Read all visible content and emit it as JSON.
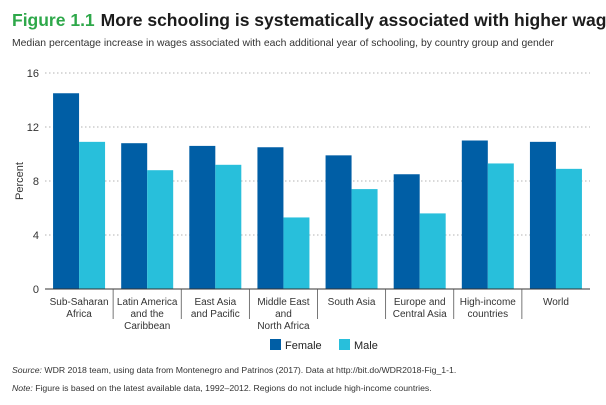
{
  "figure": {
    "number": "Figure 1.1",
    "title": "More schooling is systematically associated with higher wages",
    "subtitle": "Median percentage increase in wages associated with each additional year of schooling, by country group and gender"
  },
  "footer": {
    "source_label": "Source:",
    "source_text": "WDR 2018 team, using data from Montenegro and Patrinos (2017). Data at http://bit.do/WDR2018-Fig_1-1.",
    "note_label": "Note:",
    "note_text": "Figure is based on the latest available data, 1992–2012. Regions do not include high-income countries."
  },
  "colors": {
    "female": "#005ea5",
    "male": "#28bfdb",
    "accent": "#2ea84a"
  },
  "chart_data": {
    "type": "bar",
    "title": "More schooling is systematically associated with higher wages",
    "xlabel": "",
    "ylabel": "Percent",
    "ylim": [
      0,
      16
    ],
    "yticks": [
      0,
      4,
      8,
      12,
      16
    ],
    "grid": "horizontal dotted",
    "legend_position": "bottom-center",
    "categories": [
      [
        "Sub-Saharan",
        "Africa"
      ],
      [
        "Latin America",
        "and the",
        "Caribbean"
      ],
      [
        "East Asia",
        "and Pacific"
      ],
      [
        "Middle East",
        "and",
        "North Africa"
      ],
      [
        "South Asia"
      ],
      [
        "Europe and",
        "Central Asia"
      ],
      [
        "High-income",
        "countries"
      ],
      [
        "World"
      ]
    ],
    "series": [
      {
        "name": "Female",
        "values": [
          14.5,
          10.8,
          10.6,
          10.5,
          9.9,
          8.5,
          11.0,
          10.9
        ]
      },
      {
        "name": "Male",
        "values": [
          10.9,
          8.8,
          9.2,
          5.3,
          7.4,
          5.6,
          9.3,
          8.9
        ]
      }
    ]
  }
}
